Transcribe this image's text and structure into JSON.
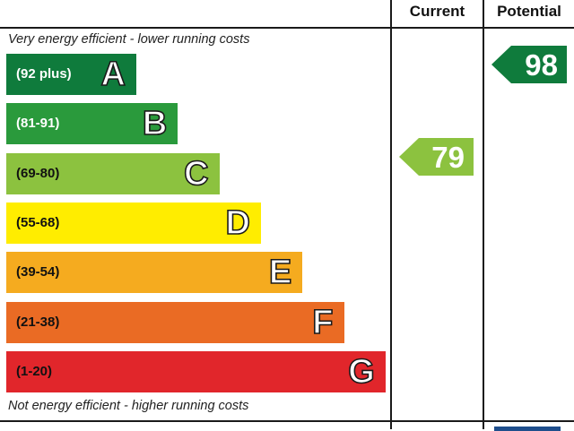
{
  "headers": {
    "current": "Current",
    "potential": "Potential"
  },
  "notes": {
    "top": "Very energy efficient - lower running costs",
    "bottom": "Not energy efficient - higher running costs"
  },
  "chart_data": {
    "type": "bar",
    "title": "",
    "categories": [
      "A",
      "B",
      "C",
      "D",
      "E",
      "F",
      "G"
    ],
    "ranges": [
      "(92 plus)",
      "(81-91)",
      "(69-80)",
      "(55-68)",
      "(39-54)",
      "(21-38)",
      "(1-20)"
    ],
    "values": [
      1,
      2,
      3,
      4,
      5,
      6,
      7
    ],
    "colors": [
      "#0f7b3c",
      "#2a9a3c",
      "#8cc23f",
      "#ffed00",
      "#f5ab1f",
      "#ea6b24",
      "#e1262b"
    ],
    "current": {
      "value": 79,
      "color": "#8cc23f"
    },
    "potential": {
      "value": 98,
      "color": "#0f7b3c"
    }
  }
}
